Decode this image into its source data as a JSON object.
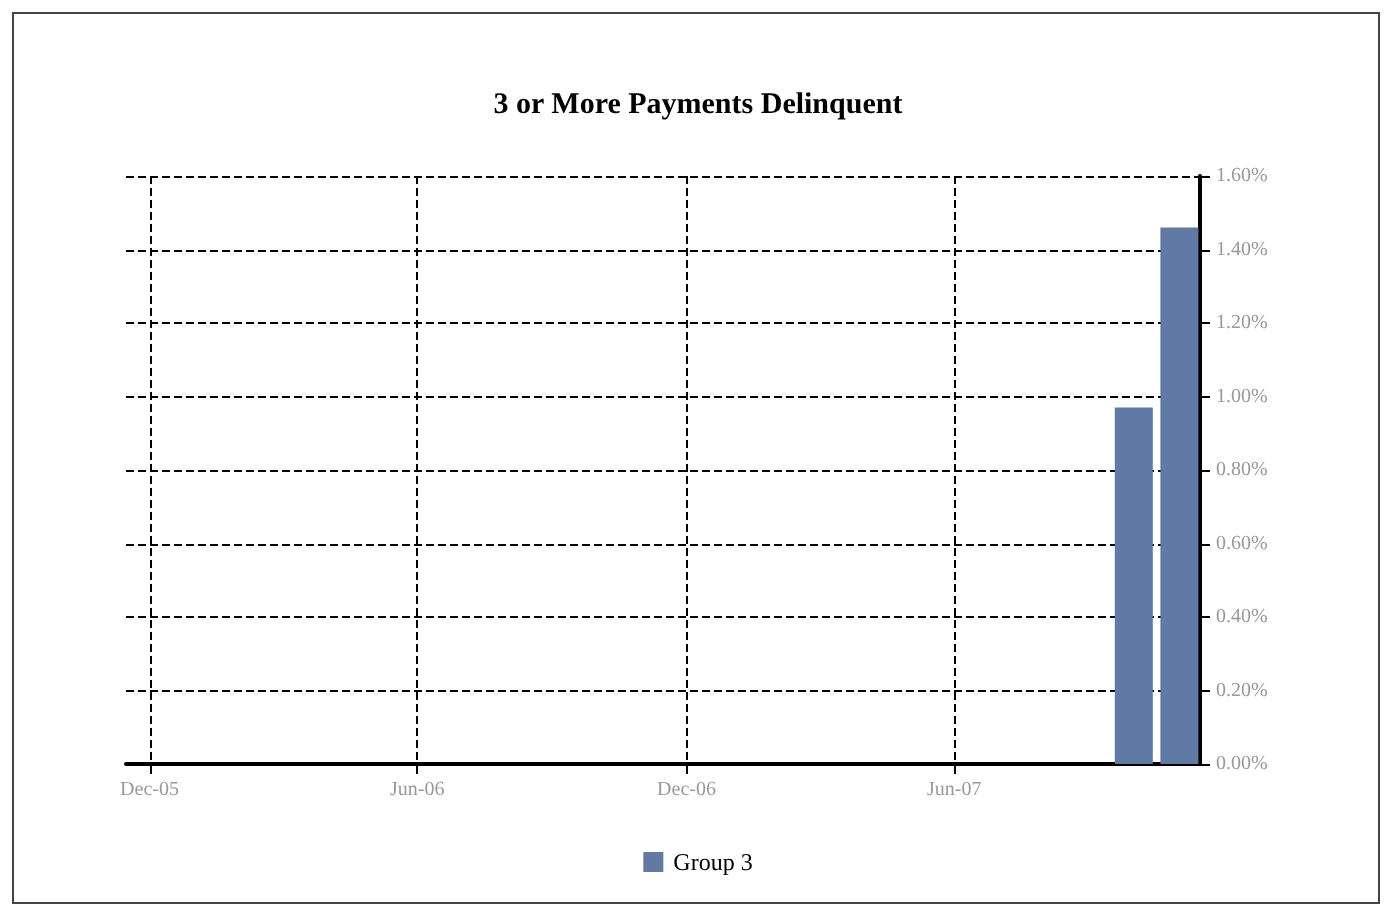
{
  "chart_data": {
    "type": "bar",
    "title": "3 or More Payments Delinquent",
    "x": [
      "2007-10",
      "2007-11"
    ],
    "series": [
      {
        "name": "Group 3",
        "color": "#6079a5",
        "values": [
          0.97,
          1.46
        ]
      }
    ],
    "xlim": [
      "2005-11-15",
      "2007-11-15"
    ],
    "xticks": [
      {
        "value": "2005-12",
        "label": "Dec-05"
      },
      {
        "value": "2006-06",
        "label": "Jun-06"
      },
      {
        "value": "2006-12",
        "label": "Dec-06"
      },
      {
        "value": "2007-06",
        "label": "Jun-07"
      }
    ],
    "ylim": [
      0,
      1.6
    ],
    "yticks": [
      {
        "value": 0,
        "label": "0.00%"
      },
      {
        "value": 0.2,
        "label": "0.20%"
      },
      {
        "value": 0.4,
        "label": "0.40%"
      },
      {
        "value": 0.6,
        "label": "0.60%"
      },
      {
        "value": 0.8,
        "label": "0.80%"
      },
      {
        "value": 1,
        "label": "1.00%"
      },
      {
        "value": 1.2,
        "label": "1.20%"
      },
      {
        "value": 1.4,
        "label": "1.40%"
      },
      {
        "value": 1.6,
        "label": "1.60%"
      }
    ],
    "grid": true,
    "legend": "bottom",
    "line_style": "dashed"
  }
}
